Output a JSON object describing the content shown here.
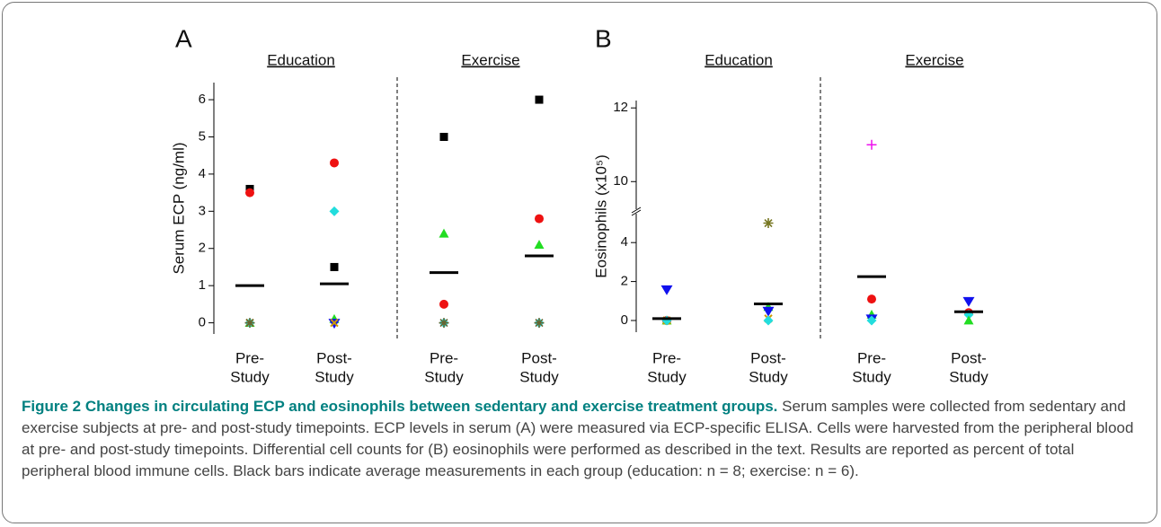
{
  "chart_data": [
    {
      "type": "dot",
      "label": "A",
      "ylabel": "Serum ECP (ng/ml)",
      "ylim": [
        -0.3,
        6.46
      ],
      "yticks": [
        0,
        1,
        2,
        3,
        4,
        5,
        6
      ],
      "groups": [
        {
          "name": "Education",
          "categories": [
            {
              "label": [
                "Pre-",
                "Study"
              ],
              "mean": 1.0,
              "points": [
                {
                  "value": 3.6,
                  "marker": "square",
                  "color": "#000000"
                },
                {
                  "value": 3.5,
                  "marker": "circle",
                  "color": "#ee1111"
                },
                {
                  "value": 0,
                  "marker": "triangle",
                  "color": "#22dd22"
                },
                {
                  "value": 0,
                  "marker": "diamond",
                  "color": "#22dddd"
                },
                {
                  "value": 0,
                  "marker": "x",
                  "color": "#cc9900"
                },
                {
                  "value": 0,
                  "marker": "asterisk",
                  "color": "#666633"
                }
              ]
            },
            {
              "label": [
                "Post-",
                "Study"
              ],
              "mean": 1.05,
              "points": [
                {
                  "value": 4.3,
                  "marker": "circle",
                  "color": "#ee1111"
                },
                {
                  "value": 3.0,
                  "marker": "diamond",
                  "color": "#22dddd"
                },
                {
                  "value": 1.5,
                  "marker": "square",
                  "color": "#000000"
                },
                {
                  "value": 0.1,
                  "marker": "triangle",
                  "color": "#22dd22"
                },
                {
                  "value": 0,
                  "marker": "triangle-down",
                  "color": "#1111ee"
                },
                {
                  "value": 0,
                  "marker": "x",
                  "color": "#cc9900"
                }
              ]
            }
          ]
        },
        {
          "name": "Exercise",
          "categories": [
            {
              "label": [
                "Pre-",
                "Study"
              ],
              "mean": 1.35,
              "points": [
                {
                  "value": 5.0,
                  "marker": "square",
                  "color": "#000000"
                },
                {
                  "value": 2.4,
                  "marker": "triangle",
                  "color": "#22dd22"
                },
                {
                  "value": 0.5,
                  "marker": "circle",
                  "color": "#ee1111"
                },
                {
                  "value": 0,
                  "marker": "diamond",
                  "color": "#22dddd"
                },
                {
                  "value": 0,
                  "marker": "asterisk",
                  "color": "#666633"
                }
              ]
            },
            {
              "label": [
                "Post-",
                "Study"
              ],
              "mean": 1.8,
              "points": [
                {
                  "value": 6.0,
                  "marker": "square",
                  "color": "#000000"
                },
                {
                  "value": 2.8,
                  "marker": "circle",
                  "color": "#ee1111"
                },
                {
                  "value": 2.1,
                  "marker": "triangle",
                  "color": "#22dd22"
                },
                {
                  "value": 0,
                  "marker": "diamond",
                  "color": "#22dddd"
                },
                {
                  "value": 0,
                  "marker": "asterisk",
                  "color": "#666633"
                }
              ]
            }
          ]
        }
      ]
    },
    {
      "type": "dot",
      "label": "B",
      "ylabel": "Eosinophils (x10⁵)",
      "ylim": [
        -0.6,
        5.3
      ],
      "yticks": [
        0,
        2,
        4
      ],
      "axis_break": {
        "ylim": [
          9.3,
          12.2
        ],
        "yticks": [
          10,
          12
        ]
      },
      "groups": [
        {
          "name": "Education",
          "categories": [
            {
              "label": [
                "Pre-",
                "Study"
              ],
              "mean": 0.1,
              "points": [
                {
                  "value": 1.6,
                  "marker": "triangle-down",
                  "color": "#1111ee"
                },
                {
                  "value": 0,
                  "marker": "circle",
                  "color": "#ee1111"
                },
                {
                  "value": 0,
                  "marker": "triangle",
                  "color": "#22dd22"
                },
                {
                  "value": 0,
                  "marker": "x",
                  "color": "#cc9900"
                },
                {
                  "value": 0,
                  "marker": "diamond",
                  "color": "#22dddd"
                }
              ]
            },
            {
              "label": [
                "Post-",
                "Study"
              ],
              "mean": 0.85,
              "points": [
                {
                  "value": 5.0,
                  "marker": "asterisk",
                  "color": "#777722"
                },
                {
                  "value": 0.7,
                  "marker": "triangle",
                  "color": "#22dd22"
                },
                {
                  "value": 0.5,
                  "marker": "triangle-down",
                  "color": "#1111ee"
                },
                {
                  "value": 0.1,
                  "marker": "x",
                  "color": "#cc9900"
                },
                {
                  "value": 0,
                  "marker": "diamond",
                  "color": "#22dddd"
                }
              ]
            }
          ]
        },
        {
          "name": "Exercise",
          "categories": [
            {
              "label": [
                "Pre-",
                "Study"
              ],
              "mean": 2.25,
              "points": [
                {
                  "value": 11.0,
                  "marker": "plus",
                  "color": "#ee11ee"
                },
                {
                  "value": 1.1,
                  "marker": "circle",
                  "color": "#ee1111"
                },
                {
                  "value": 0.3,
                  "marker": "triangle",
                  "color": "#22dd22"
                },
                {
                  "value": 0.1,
                  "marker": "triangle-down",
                  "color": "#1111ee"
                },
                {
                  "value": 0,
                  "marker": "diamond",
                  "color": "#22dddd"
                }
              ]
            },
            {
              "label": [
                "Post-",
                "Study"
              ],
              "mean": 0.45,
              "points": [
                {
                  "value": 1.0,
                  "marker": "triangle-down",
                  "color": "#1111ee"
                },
                {
                  "value": 0.4,
                  "marker": "circle",
                  "color": "#ee1111"
                },
                {
                  "value": 0.3,
                  "marker": "diamond",
                  "color": "#22dddd"
                },
                {
                  "value": 0,
                  "marker": "triangle",
                  "color": "#22dd22"
                }
              ]
            }
          ]
        }
      ]
    }
  ],
  "caption": {
    "title": "Figure 2 Changes in circulating ECP and eosinophils between sedentary and exercise treatment groups.",
    "text": "Serum samples were collected from sedentary and exercise subjects at pre- and post-study timepoints. ECP levels in serum (A) were measured via ECP-specific ELISA. Cells were harvested from the peripheral blood at pre- and post-study timepoints. Differential cell counts for (B) eosinophils were performed as described in the text. Results are reported as percent of total peripheral blood immune cells. Black bars indicate average measurements in each group (education: n = 8; exercise: n = 6)."
  }
}
